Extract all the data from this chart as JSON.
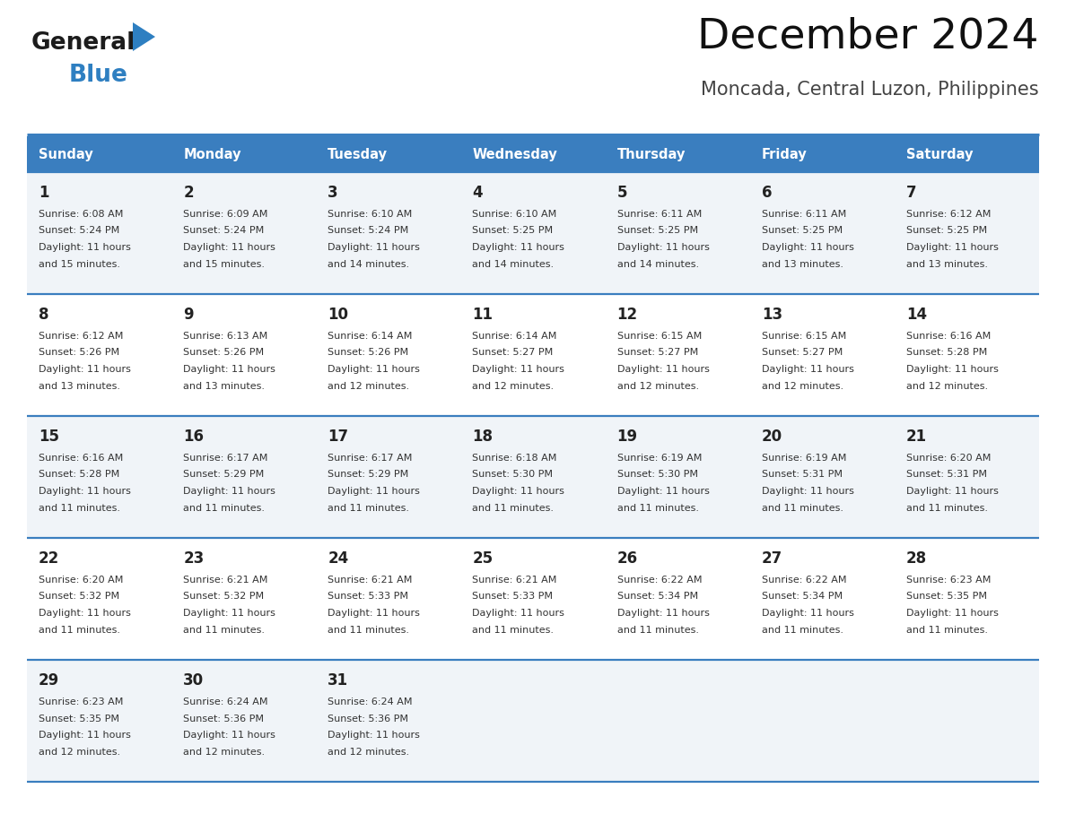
{
  "title": "December 2024",
  "subtitle": "Moncada, Central Luzon, Philippines",
  "header_color": "#3a7ebf",
  "header_text_color": "#ffffff",
  "cell_bg_odd": "#f0f4f8",
  "cell_bg_even": "#ffffff",
  "border_color": "#3a7ebf",
  "text_color": "#333333",
  "day_headers": [
    "Sunday",
    "Monday",
    "Tuesday",
    "Wednesday",
    "Thursday",
    "Friday",
    "Saturday"
  ],
  "weeks": [
    [
      {
        "day": "1",
        "sunrise": "6:08 AM",
        "sunset": "5:24 PM",
        "daylight_h": "11",
        "daylight_m": "15"
      },
      {
        "day": "2",
        "sunrise": "6:09 AM",
        "sunset": "5:24 PM",
        "daylight_h": "11",
        "daylight_m": "15"
      },
      {
        "day": "3",
        "sunrise": "6:10 AM",
        "sunset": "5:24 PM",
        "daylight_h": "11",
        "daylight_m": "14"
      },
      {
        "day": "4",
        "sunrise": "6:10 AM",
        "sunset": "5:25 PM",
        "daylight_h": "11",
        "daylight_m": "14"
      },
      {
        "day": "5",
        "sunrise": "6:11 AM",
        "sunset": "5:25 PM",
        "daylight_h": "11",
        "daylight_m": "14"
      },
      {
        "day": "6",
        "sunrise": "6:11 AM",
        "sunset": "5:25 PM",
        "daylight_h": "11",
        "daylight_m": "13"
      },
      {
        "day": "7",
        "sunrise": "6:12 AM",
        "sunset": "5:25 PM",
        "daylight_h": "11",
        "daylight_m": "13"
      }
    ],
    [
      {
        "day": "8",
        "sunrise": "6:12 AM",
        "sunset": "5:26 PM",
        "daylight_h": "11",
        "daylight_m": "13"
      },
      {
        "day": "9",
        "sunrise": "6:13 AM",
        "sunset": "5:26 PM",
        "daylight_h": "11",
        "daylight_m": "13"
      },
      {
        "day": "10",
        "sunrise": "6:14 AM",
        "sunset": "5:26 PM",
        "daylight_h": "11",
        "daylight_m": "12"
      },
      {
        "day": "11",
        "sunrise": "6:14 AM",
        "sunset": "5:27 PM",
        "daylight_h": "11",
        "daylight_m": "12"
      },
      {
        "day": "12",
        "sunrise": "6:15 AM",
        "sunset": "5:27 PM",
        "daylight_h": "11",
        "daylight_m": "12"
      },
      {
        "day": "13",
        "sunrise": "6:15 AM",
        "sunset": "5:27 PM",
        "daylight_h": "11",
        "daylight_m": "12"
      },
      {
        "day": "14",
        "sunrise": "6:16 AM",
        "sunset": "5:28 PM",
        "daylight_h": "11",
        "daylight_m": "12"
      }
    ],
    [
      {
        "day": "15",
        "sunrise": "6:16 AM",
        "sunset": "5:28 PM",
        "daylight_h": "11",
        "daylight_m": "11"
      },
      {
        "day": "16",
        "sunrise": "6:17 AM",
        "sunset": "5:29 PM",
        "daylight_h": "11",
        "daylight_m": "11"
      },
      {
        "day": "17",
        "sunrise": "6:17 AM",
        "sunset": "5:29 PM",
        "daylight_h": "11",
        "daylight_m": "11"
      },
      {
        "day": "18",
        "sunrise": "6:18 AM",
        "sunset": "5:30 PM",
        "daylight_h": "11",
        "daylight_m": "11"
      },
      {
        "day": "19",
        "sunrise": "6:19 AM",
        "sunset": "5:30 PM",
        "daylight_h": "11",
        "daylight_m": "11"
      },
      {
        "day": "20",
        "sunrise": "6:19 AM",
        "sunset": "5:31 PM",
        "daylight_h": "11",
        "daylight_m": "11"
      },
      {
        "day": "21",
        "sunrise": "6:20 AM",
        "sunset": "5:31 PM",
        "daylight_h": "11",
        "daylight_m": "11"
      }
    ],
    [
      {
        "day": "22",
        "sunrise": "6:20 AM",
        "sunset": "5:32 PM",
        "daylight_h": "11",
        "daylight_m": "11"
      },
      {
        "day": "23",
        "sunrise": "6:21 AM",
        "sunset": "5:32 PM",
        "daylight_h": "11",
        "daylight_m": "11"
      },
      {
        "day": "24",
        "sunrise": "6:21 AM",
        "sunset": "5:33 PM",
        "daylight_h": "11",
        "daylight_m": "11"
      },
      {
        "day": "25",
        "sunrise": "6:21 AM",
        "sunset": "5:33 PM",
        "daylight_h": "11",
        "daylight_m": "11"
      },
      {
        "day": "26",
        "sunrise": "6:22 AM",
        "sunset": "5:34 PM",
        "daylight_h": "11",
        "daylight_m": "11"
      },
      {
        "day": "27",
        "sunrise": "6:22 AM",
        "sunset": "5:34 PM",
        "daylight_h": "11",
        "daylight_m": "11"
      },
      {
        "day": "28",
        "sunrise": "6:23 AM",
        "sunset": "5:35 PM",
        "daylight_h": "11",
        "daylight_m": "11"
      }
    ],
    [
      {
        "day": "29",
        "sunrise": "6:23 AM",
        "sunset": "5:35 PM",
        "daylight_h": "11",
        "daylight_m": "12"
      },
      {
        "day": "30",
        "sunrise": "6:24 AM",
        "sunset": "5:36 PM",
        "daylight_h": "11",
        "daylight_m": "12"
      },
      {
        "day": "31",
        "sunrise": "6:24 AM",
        "sunset": "5:36 PM",
        "daylight_h": "11",
        "daylight_m": "12"
      },
      null,
      null,
      null,
      null
    ]
  ],
  "logo_color_general": "#1c1c1c",
  "logo_color_blue": "#2e7fc1"
}
